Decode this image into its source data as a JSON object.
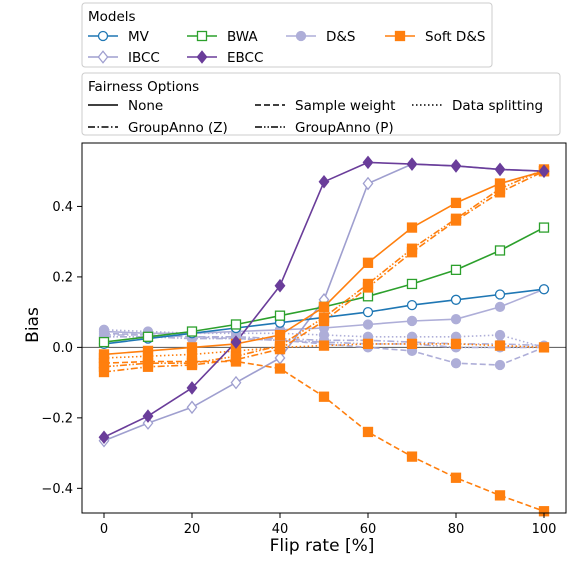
{
  "chart_data": {
    "type": "line",
    "xlabel": "Flip rate [%]",
    "ylabel": "Bias",
    "xlim": [
      -5,
      105
    ],
    "ylim": [
      -0.47,
      0.58
    ],
    "xticks": [
      0,
      20,
      40,
      60,
      80,
      100
    ],
    "yticks": [
      -0.4,
      -0.2,
      0.0,
      0.2,
      0.4
    ],
    "xtick_labels": [
      "0",
      "20",
      "40",
      "60",
      "80",
      "100"
    ],
    "ytick_labels": [
      "−0.4",
      "−0.2",
      "0.0",
      "0.2",
      "0.4"
    ],
    "x": [
      0,
      10,
      20,
      30,
      40,
      50,
      60,
      70,
      80,
      90,
      100
    ],
    "zero_line": true,
    "grid": false,
    "legend_placement": "top-left, above plot",
    "models_legend": {
      "title": "Models",
      "entries": [
        {
          "label": "MV",
          "color": "#1f77b4",
          "marker": "circle",
          "filled": false
        },
        {
          "label": "BWA",
          "color": "#2ca02c",
          "marker": "square",
          "filled": false
        },
        {
          "label": "D&S",
          "color": "#aeaed8",
          "marker": "circle",
          "filled": true
        },
        {
          "label": "Soft D&S",
          "color": "#ff7f0e",
          "marker": "square",
          "filled": true
        },
        {
          "label": "IBCC",
          "color": "#9f9fcf",
          "marker": "diamond",
          "filled": false
        },
        {
          "label": "EBCC",
          "color": "#6a3d9a",
          "marker": "diamond",
          "filled": true
        }
      ]
    },
    "fairness_legend": {
      "title": "Fairness Options",
      "entries": [
        {
          "label": "None",
          "dash": "solid"
        },
        {
          "label": "Sample weight",
          "dash": "dashed"
        },
        {
          "label": "Data splitting",
          "dash": "dotted"
        },
        {
          "label": "GroupAnno (Z)",
          "dash": "dashdot"
        },
        {
          "label": "GroupAnno (P)",
          "dash": "dashdotdot"
        }
      ]
    },
    "series": [
      {
        "model": "D&S",
        "option": "None",
        "color": "#aeaed8",
        "marker": "circle",
        "filled": true,
        "dash": "solid",
        "values": [
          0.045,
          0.04,
          0.04,
          0.045,
          0.05,
          0.055,
          0.065,
          0.075,
          0.08,
          0.115,
          0.165
        ]
      },
      {
        "model": "D&S",
        "option": "Sample weight",
        "color": "#aeaed8",
        "marker": "circle",
        "filled": true,
        "dash": "dashed",
        "values": [
          0.04,
          0.035,
          0.03,
          0.025,
          0.02,
          0.01,
          0.0,
          -0.01,
          -0.045,
          -0.05,
          0.0
        ]
      },
      {
        "model": "D&S",
        "option": "Data splitting",
        "color": "#aeaed8",
        "marker": "circle",
        "filled": true,
        "dash": "dotted",
        "values": [
          0.05,
          0.045,
          0.04,
          0.04,
          0.04,
          0.035,
          0.03,
          0.03,
          0.03,
          0.035,
          0.0
        ]
      },
      {
        "model": "D&S",
        "option": "GroupAnno (Z)",
        "color": "#aeaed8",
        "marker": "circle",
        "filled": true,
        "dash": "dashdot",
        "values": [
          0.035,
          0.035,
          0.03,
          0.03,
          0.025,
          0.02,
          0.02,
          0.015,
          0.01,
          0.01,
          0.005
        ]
      },
      {
        "model": "D&S",
        "option": "GroupAnno (P)",
        "color": "#aeaed8",
        "marker": "circle",
        "filled": true,
        "dash": "dashdotdot",
        "values": [
          0.03,
          0.03,
          0.025,
          0.025,
          0.02,
          0.015,
          0.01,
          0.01,
          0.0,
          0.0,
          0.0
        ]
      },
      {
        "model": "IBCC",
        "option": "None",
        "color": "#9f9fcf",
        "marker": "diamond",
        "filled": false,
        "dash": "solid",
        "values": [
          -0.265,
          -0.215,
          -0.17,
          -0.1,
          -0.03,
          0.135,
          0.465,
          0.52,
          0.515,
          0.505,
          0.5
        ]
      },
      {
        "model": "MV",
        "option": "None",
        "color": "#1f77b4",
        "marker": "circle",
        "filled": false,
        "dash": "solid",
        "values": [
          0.01,
          0.025,
          0.04,
          0.055,
          0.07,
          0.085,
          0.1,
          0.12,
          0.135,
          0.15,
          0.165
        ]
      },
      {
        "model": "BWA",
        "option": "None",
        "color": "#2ca02c",
        "marker": "square",
        "filled": false,
        "dash": "solid",
        "values": [
          0.015,
          0.03,
          0.045,
          0.065,
          0.09,
          0.115,
          0.145,
          0.18,
          0.22,
          0.275,
          0.34
        ]
      },
      {
        "model": "Soft D&S",
        "option": "None",
        "color": "#ff7f0e",
        "marker": "square",
        "filled": true,
        "dash": "solid",
        "values": [
          -0.02,
          -0.01,
          0.0,
          0.01,
          0.035,
          0.115,
          0.24,
          0.34,
          0.41,
          0.465,
          0.5
        ]
      },
      {
        "model": "Soft D&S",
        "option": "Sample weight",
        "color": "#ff7f0e",
        "marker": "square",
        "filled": true,
        "dash": "dashed",
        "values": [
          -0.045,
          -0.04,
          -0.04,
          -0.04,
          -0.06,
          -0.14,
          -0.24,
          -0.31,
          -0.37,
          -0.42,
          -0.465
        ]
      },
      {
        "model": "Soft D&S",
        "option": "Data splitting",
        "color": "#ff7f0e",
        "marker": "square",
        "filled": true,
        "dash": "dotted",
        "values": [
          -0.03,
          -0.025,
          -0.02,
          -0.01,
          0.0,
          0.005,
          0.01,
          0.01,
          0.01,
          0.005,
          0.0
        ]
      },
      {
        "model": "Soft D&S",
        "option": "GroupAnno (Z)",
        "color": "#ff7f0e",
        "marker": "square",
        "filled": true,
        "dash": "dashdot",
        "values": [
          -0.07,
          -0.055,
          -0.05,
          -0.035,
          -0.005,
          0.075,
          0.17,
          0.27,
          0.36,
          0.44,
          0.5
        ]
      },
      {
        "model": "Soft D&S",
        "option": "GroupAnno (P)",
        "color": "#ff7f0e",
        "marker": "square",
        "filled": true,
        "dash": "dashdotdot",
        "values": [
          -0.055,
          -0.045,
          -0.045,
          -0.025,
          0.005,
          0.085,
          0.18,
          0.28,
          0.365,
          0.45,
          0.505
        ]
      },
      {
        "model": "EBCC",
        "option": "None",
        "color": "#6a3d9a",
        "marker": "diamond",
        "filled": true,
        "dash": "solid",
        "values": [
          -0.255,
          -0.195,
          -0.115,
          0.015,
          0.175,
          0.47,
          0.525,
          0.52,
          0.515,
          0.505,
          0.5
        ]
      }
    ]
  }
}
